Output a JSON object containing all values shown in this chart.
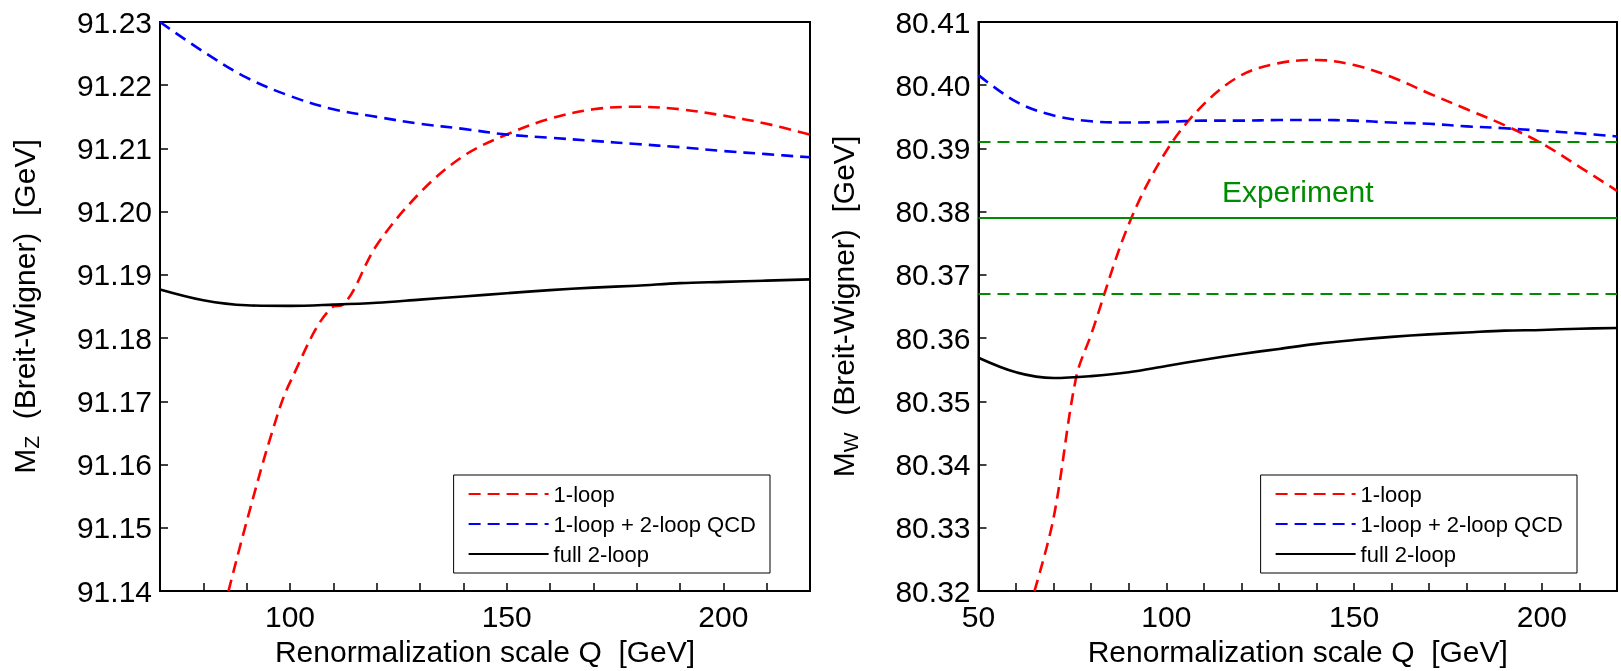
{
  "chart_data": [
    {
      "type": "line",
      "xlabel": "Renormalization scale Q  [GeV]",
      "ylabel": "M$_{Z}$  (Breit-Wigner)  [GeV]",
      "xlim": [
        70,
        220
      ],
      "ylim": [
        91.14,
        91.23
      ],
      "xticks": [
        {
          "value": 70,
          "label": null
        },
        {
          "value": 80,
          "label": null
        },
        {
          "value": 90,
          "label": null
        },
        100,
        {
          "value": 110,
          "label": null
        },
        {
          "value": 120,
          "label": null
        },
        {
          "value": 130,
          "label": null
        },
        {
          "value": 140,
          "label": null
        },
        150,
        {
          "value": 160,
          "label": null
        },
        {
          "value": 170,
          "label": null
        },
        {
          "value": 180,
          "label": null
        },
        {
          "value": 190,
          "label": null
        },
        200,
        {
          "value": 210,
          "label": null
        },
        {
          "value": 220,
          "label": null
        }
      ],
      "yticks": [
        {
          "value": 91.14,
          "label": "91.14"
        },
        91.15,
        91.16,
        91.17,
        91.18,
        91.19,
        {
          "value": 91.2,
          "label": "91.20"
        },
        91.21,
        91.22,
        91.23
      ],
      "grid": false,
      "legend": "bottom right",
      "marker": "none",
      "series": [
        {
          "name": "1-loop",
          "color": "#ff0000",
          "line_style": "dashed",
          "x": [
            85.8,
            90,
            95.8,
            100,
            110,
            112,
            120,
            130,
            140,
            150,
            160,
            170,
            180,
            190,
            200,
            210,
            220
          ],
          "values": [
            91.14,
            91.151,
            91.165,
            91.173,
            91.185,
            91.1852,
            91.1947,
            91.203,
            91.2088,
            91.2122,
            91.2147,
            91.2162,
            91.2166,
            91.2162,
            91.2152,
            91.2139,
            91.2122
          ]
        },
        {
          "name": "1-loop + 2-loop QCD",
          "color": "#0000ff",
          "line_style": "dashed",
          "x": [
            70,
            80,
            90,
            100,
            110,
            120,
            130,
            140,
            150,
            160,
            170,
            180,
            190,
            200,
            210,
            220
          ],
          "values": [
            91.23,
            91.2253,
            91.2212,
            91.2183,
            91.2162,
            91.215,
            91.2139,
            91.2131,
            91.2122,
            91.2117,
            91.2112,
            91.2107,
            91.2102,
            91.2096,
            91.2091,
            91.2086
          ]
        },
        {
          "name": "full 2-loop",
          "color": "#000000",
          "line_style": "solid",
          "x": [
            70,
            80,
            90,
            100,
            110,
            120,
            130,
            140,
            150,
            160,
            170,
            180,
            190,
            200,
            210,
            220
          ],
          "values": [
            91.1877,
            91.186,
            91.1852,
            91.1851,
            91.1853,
            91.1856,
            91.1861,
            91.1866,
            91.1871,
            91.1876,
            91.188,
            91.1883,
            91.1887,
            91.1889,
            91.1891,
            91.1893
          ]
        }
      ]
    },
    {
      "type": "line",
      "xlabel": "Renormalization scale Q  [GeV]",
      "ylabel": "M$_{W}$  (Breit-Wigner)  [GeV]",
      "xlim": [
        50,
        220
      ],
      "ylim": [
        80.32,
        80.41
      ],
      "xticks": [
        50,
        {
          "value": 60,
          "label": null
        },
        {
          "value": 70,
          "label": null
        },
        {
          "value": 80,
          "label": null
        },
        {
          "value": 90,
          "label": null
        },
        100,
        {
          "value": 110,
          "label": null
        },
        {
          "value": 120,
          "label": null
        },
        {
          "value": 130,
          "label": null
        },
        {
          "value": 140,
          "label": null
        },
        150,
        {
          "value": 160,
          "label": null
        },
        {
          "value": 170,
          "label": null
        },
        {
          "value": 180,
          "label": null
        },
        {
          "value": 190,
          "label": null
        },
        200,
        {
          "value": 210,
          "label": null
        },
        {
          "value": 220,
          "label": null
        }
      ],
      "yticks": [
        80.32,
        80.33,
        80.34,
        80.35,
        80.36,
        80.37,
        80.38,
        80.39,
        {
          "value": 80.4,
          "label": "80.40"
        },
        80.41
      ],
      "grid": false,
      "legend": "bottom right",
      "marker": "none",
      "ref_lines": [
        {
          "axis": "y",
          "value": 80.391,
          "label": null,
          "color": "#008c00",
          "line_style": "dashed"
        },
        {
          "axis": "y",
          "value": 80.379,
          "label": "Experiment",
          "color": "#008c00",
          "line_style": "solid"
        },
        {
          "axis": "y",
          "value": 80.367,
          "label": null,
          "color": "#008c00",
          "line_style": "dashed"
        }
      ],
      "series": [
        {
          "name": "1-loop",
          "color": "#ff0000",
          "line_style": "dashed",
          "x": [
            64.9,
            70,
            76,
            80,
            90,
            100,
            110,
            120,
            130,
            140,
            150,
            160,
            170,
            180,
            190,
            200,
            210,
            220
          ],
          "values": [
            80.32,
            80.3316,
            80.3538,
            80.3606,
            80.378,
            80.3896,
            80.397,
            80.4016,
            80.4035,
            80.404,
            80.4032,
            80.4013,
            80.3987,
            80.3962,
            80.3937,
            80.3908,
            80.3871,
            80.3833
          ]
        },
        {
          "name": "1-loop + 2-loop QCD",
          "color": "#0000ff",
          "line_style": "dashed",
          "x": [
            50,
            60,
            70,
            80,
            90,
            100,
            110,
            120,
            130,
            140,
            150,
            160,
            170,
            180,
            190,
            200,
            210,
            220
          ],
          "values": [
            80.4016,
            80.3974,
            80.3952,
            80.3943,
            80.3941,
            80.3942,
            80.3944,
            80.3944,
            80.3945,
            80.3945,
            80.3944,
            80.3941,
            80.3939,
            80.3935,
            80.3932,
            80.3928,
            80.3924,
            80.3919
          ]
        },
        {
          "name": "full 2-loop",
          "color": "#000000",
          "line_style": "solid",
          "x": [
            50,
            60,
            70,
            80,
            90,
            100,
            110,
            120,
            130,
            140,
            150,
            160,
            170,
            180,
            190,
            200,
            210,
            220
          ],
          "values": [
            80.3569,
            80.3546,
            80.3537,
            80.354,
            80.3546,
            80.3556,
            80.3566,
            80.3575,
            80.3583,
            80.3591,
            80.3597,
            80.3602,
            80.3606,
            80.3609,
            80.3612,
            80.3613,
            80.3615,
            80.3616
          ]
        }
      ]
    }
  ]
}
